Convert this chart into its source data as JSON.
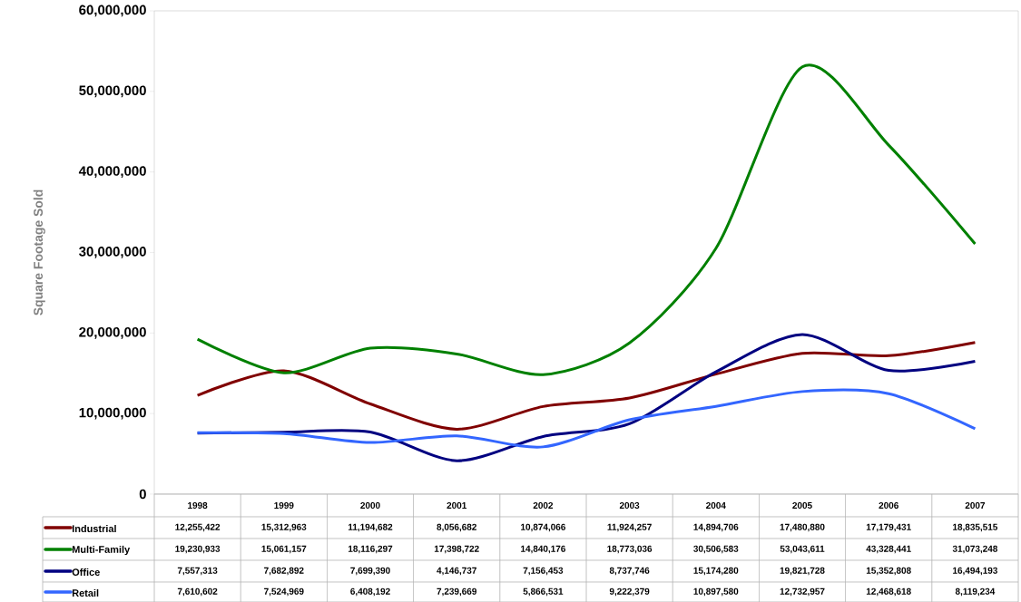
{
  "chart_data": {
    "type": "line",
    "ylabel": "Square Footage Sold",
    "categories": [
      "1998",
      "1999",
      "2000",
      "2001",
      "2002",
      "2003",
      "2004",
      "2005",
      "2006",
      "2007"
    ],
    "ylim": [
      0,
      60000000
    ],
    "yticks": [
      {
        "value": 0,
        "label": "0"
      },
      {
        "value": 10000000,
        "label": "10,000,000"
      },
      {
        "value": 20000000,
        "label": "20,000,000"
      },
      {
        "value": 30000000,
        "label": "30,000,000"
      },
      {
        "value": 40000000,
        "label": "40,000,000"
      },
      {
        "value": 50000000,
        "label": "50,000,000"
      },
      {
        "value": 60000000,
        "label": "60,000,000"
      }
    ],
    "series": [
      {
        "name": "Industrial",
        "color": "#800000",
        "values": [
          12255422,
          15312963,
          11194682,
          8056682,
          10874066,
          11924257,
          14894706,
          17480880,
          17179431,
          18835515
        ],
        "value_labels": [
          "12,255,422",
          "15,312,963",
          "11,194,682",
          "8,056,682",
          "10,874,066",
          "11,924,257",
          "14,894,706",
          "17,480,880",
          "17,179,431",
          "18,835,515"
        ]
      },
      {
        "name": "Multi-Family",
        "color": "#008000",
        "values": [
          19230933,
          15061157,
          18116297,
          17398722,
          14840176,
          18773036,
          30506583,
          53043611,
          43328441,
          31073248
        ],
        "value_labels": [
          "19,230,933",
          "15,061,157",
          "18,116,297",
          "17,398,722",
          "14,840,176",
          "18,773,036",
          "30,506,583",
          "53,043,611",
          "43,328,441",
          "31,073,248"
        ]
      },
      {
        "name": "Office",
        "color": "#000080",
        "values": [
          7557313,
          7682892,
          7699390,
          4146737,
          7156453,
          8737746,
          15174280,
          19821728,
          15352808,
          16494193
        ],
        "value_labels": [
          "7,557,313",
          "7,682,892",
          "7,699,390",
          "4,146,737",
          "7,156,453",
          "8,737,746",
          "15,174,280",
          "19,821,728",
          "15,352,808",
          "16,494,193"
        ]
      },
      {
        "name": "Retail",
        "color": "#3366ff",
        "values": [
          7610602,
          7524969,
          6408192,
          7239669,
          5866531,
          9222379,
          10897580,
          12732957,
          12468618,
          8119234
        ],
        "value_labels": [
          "7,610,602",
          "7,524,969",
          "6,408,192",
          "7,239,669",
          "5,866,531",
          "9,222,379",
          "10,897,580",
          "12,732,957",
          "12,468,618",
          "8,119,234"
        ]
      }
    ],
    "legend": "bottom left",
    "line_style": "solid"
  }
}
